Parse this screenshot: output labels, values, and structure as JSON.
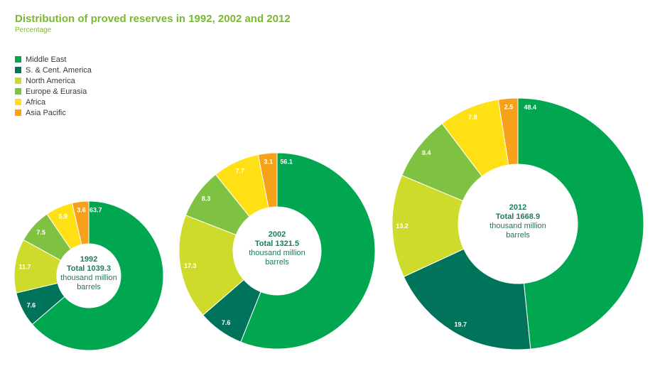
{
  "header": {
    "title": "Distribution of proved reserves in 1992, 2002 and 2012",
    "subtitle": "Percentage"
  },
  "colors": {
    "Middle East": "#00a650",
    "S. & Cent. America": "#00745a",
    "North America": "#cfdb2a",
    "Europe & Eurasia": "#7fc241",
    "Africa": "#ffe014",
    "Asia Pacific": "#f7a11b"
  },
  "chart_data": {
    "type": "pie",
    "legend": [
      "Middle East",
      "S. & Cent. America",
      "North America",
      "Europe & Eurasia",
      "Africa",
      "Asia Pacific"
    ],
    "categories": [
      "Middle East",
      "S. & Cent. America",
      "North America",
      "Europe & Eurasia",
      "Africa",
      "Asia Pacific"
    ],
    "series": [
      {
        "name": "1992",
        "total_label": "Total 1039.3",
        "unit_line1": "thousand million",
        "unit_line2": "barrels",
        "values": [
          63.7,
          7.6,
          11.7,
          7.5,
          5.9,
          3.6
        ]
      },
      {
        "name": "2002",
        "total_label": "Total 1321.5",
        "unit_line1": "thousand million",
        "unit_line2": "barrels",
        "values": [
          56.1,
          7.6,
          17.3,
          8.3,
          7.7,
          3.1
        ]
      },
      {
        "name": "2012",
        "total_label": "Total 1668.9",
        "unit_line1": "thousand million",
        "unit_line2": "barrels",
        "values": [
          48.4,
          19.7,
          13.2,
          8.4,
          7.8,
          2.5
        ]
      }
    ]
  }
}
